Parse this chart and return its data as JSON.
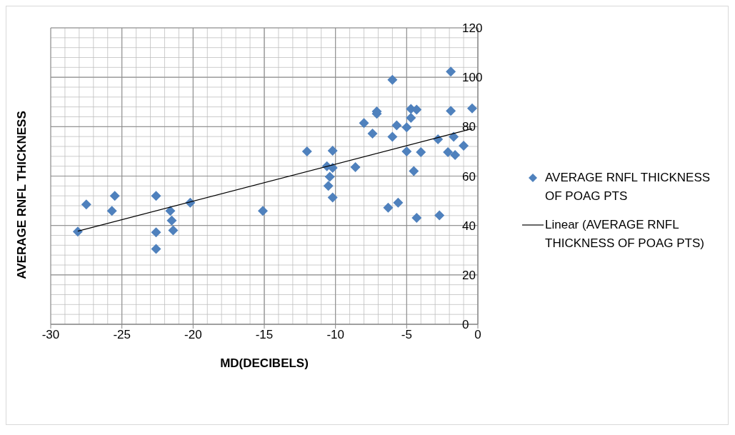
{
  "chart_data": {
    "type": "scatter",
    "xlabel": "MD(DECIBELS)",
    "ylabel": "AVERAGE RNFL THICKNESS",
    "xlim": [
      -30,
      0
    ],
    "xticks": [
      -30,
      -25,
      -20,
      -15,
      -10,
      -5,
      0
    ],
    "ylim": [
      0,
      120
    ],
    "yticks": [
      0,
      20,
      40,
      60,
      80,
      100,
      120
    ],
    "grid": true,
    "legend": "right",
    "marker": "diamond",
    "series": [
      {
        "name": "AVERAGE RNFL THICKNESS OF POAG PTS",
        "color": "#4f81bd",
        "x": [
          -28.1,
          -27.5,
          -25.7,
          -25.5,
          -22.6,
          -22.6,
          -22.6,
          -21.6,
          -21.5,
          -21.4,
          -20.2,
          -15.1,
          -12,
          -10.2,
          -10.6,
          -10.2,
          -10.4,
          -10.5,
          -10.2,
          -8.6,
          -8.0,
          -7.4,
          -7.1,
          -7.1,
          -6.0,
          -6.0,
          -5.7,
          -5.0,
          -4.7,
          -4.7,
          -4.3,
          -5.0,
          -4.0,
          -4.5,
          -6.3,
          -5.6,
          -4.3,
          -2.7,
          -2.8,
          -1.9,
          -1.9,
          -1.7,
          -2.1,
          -1.6,
          -1.0,
          -0.4
        ],
        "values": [
          37.5,
          48.5,
          45.9,
          52,
          52,
          37.2,
          30.5,
          45.9,
          42,
          38,
          49.2,
          45.9,
          70,
          70.3,
          64,
          63.3,
          59.7,
          56,
          51.3,
          63.6,
          81.5,
          77.2,
          86.2,
          85.2,
          99,
          75.9,
          80.5,
          79.7,
          83.6,
          87.2,
          86.9,
          70,
          69.7,
          62,
          47.2,
          49.2,
          43.1,
          44.1,
          74.9,
          102.3,
          86.4,
          75.9,
          69.7,
          68.5,
          72.3,
          87.4
        ]
      },
      {
        "name": "Linear (AVERAGE RNFL THICKNESS OF POAG PTS)",
        "type": "line",
        "color": "#000000",
        "marker": "none",
        "line_style": "solid",
        "x": [
          -28.1,
          -0.4
        ],
        "values": [
          37.7,
          79.2
        ]
      }
    ]
  }
}
